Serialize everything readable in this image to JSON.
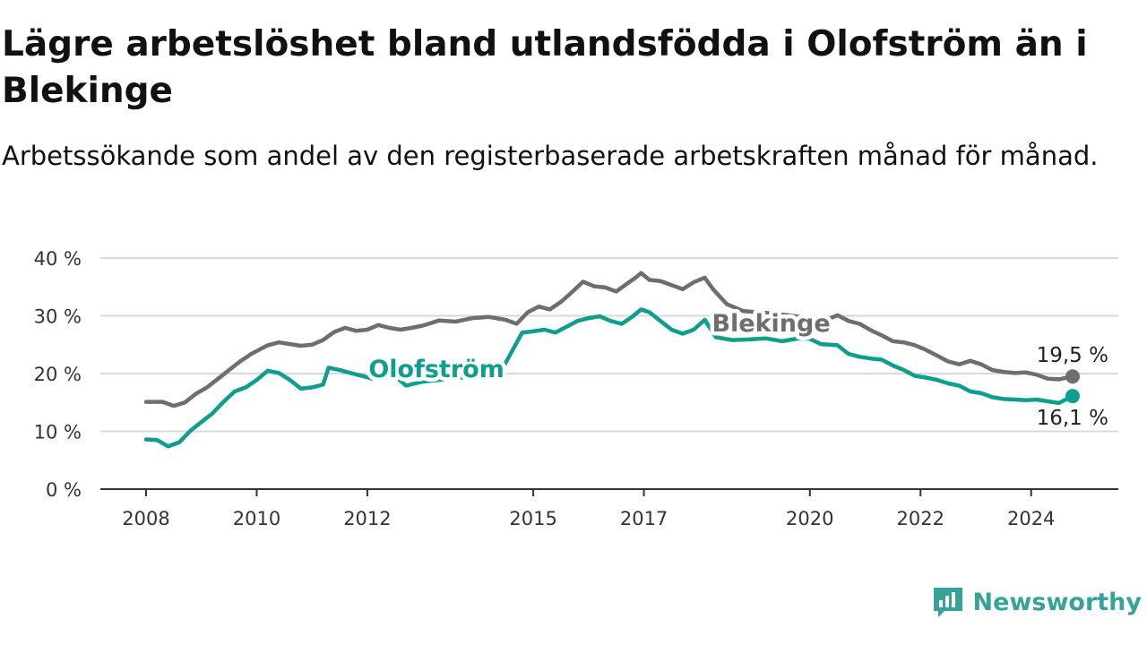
{
  "title": "Lägre arbetslöshet bland utlandsfödda i Olofström än i Blekinge",
  "subtitle": "Arbetssökande som andel av den registerbaserade arbetskraften månad för månad.",
  "brand": {
    "name": "Newsworthy",
    "icon": "bar-chart-bubble-icon"
  },
  "chart_data": {
    "type": "line",
    "title": "Lägre arbetslöshet bland utlandsfödda i Olofström än i Blekinge",
    "subtitle": "Arbetssökande som andel av den registerbaserade arbetskraften månad för månad.",
    "xlabel": "",
    "ylabel": "",
    "xlim": [
      2008.0,
      2024.75
    ],
    "ylim": [
      0,
      40
    ],
    "x_ticks": [
      2008,
      2010,
      2012,
      2015,
      2017,
      2020,
      2022,
      2024
    ],
    "x_tick_labels": [
      "2008",
      "2010",
      "2012",
      "2015",
      "2017",
      "2020",
      "2022",
      "2024"
    ],
    "y_ticks": [
      0,
      10,
      20,
      30,
      40
    ],
    "y_tick_labels": [
      "0 %",
      "10 %",
      "20 %",
      "30 %",
      "40 %"
    ],
    "grid": true,
    "legend": "direct labels",
    "series": [
      {
        "name": "Blekinge",
        "color": "#6d6d73",
        "end_label": "19,5 %",
        "points": [
          [
            2008.0,
            15.1
          ],
          [
            2008.3,
            15.1
          ],
          [
            2008.5,
            14.4
          ],
          [
            2008.7,
            15.0
          ],
          [
            2008.9,
            16.5
          ],
          [
            2009.1,
            17.6
          ],
          [
            2009.3,
            19.1
          ],
          [
            2009.5,
            20.6
          ],
          [
            2009.7,
            22.1
          ],
          [
            2009.9,
            23.4
          ],
          [
            2010.0,
            23.9
          ],
          [
            2010.2,
            24.9
          ],
          [
            2010.4,
            25.4
          ],
          [
            2010.6,
            25.1
          ],
          [
            2010.8,
            24.8
          ],
          [
            2011.0,
            25.0
          ],
          [
            2011.2,
            25.8
          ],
          [
            2011.4,
            27.2
          ],
          [
            2011.6,
            27.9
          ],
          [
            2011.8,
            27.4
          ],
          [
            2012.0,
            27.6
          ],
          [
            2012.2,
            28.4
          ],
          [
            2012.4,
            27.9
          ],
          [
            2012.6,
            27.6
          ],
          [
            2012.8,
            27.9
          ],
          [
            2013.0,
            28.3
          ],
          [
            2013.3,
            29.2
          ],
          [
            2013.6,
            29.0
          ],
          [
            2013.9,
            29.6
          ],
          [
            2014.2,
            29.8
          ],
          [
            2014.5,
            29.3
          ],
          [
            2014.7,
            28.6
          ],
          [
            2014.9,
            30.6
          ],
          [
            2015.1,
            31.6
          ],
          [
            2015.3,
            31.1
          ],
          [
            2015.5,
            32.4
          ],
          [
            2015.7,
            34.1
          ],
          [
            2015.9,
            35.9
          ],
          [
            2016.1,
            35.1
          ],
          [
            2016.3,
            34.9
          ],
          [
            2016.5,
            34.2
          ],
          [
            2016.7,
            35.6
          ],
          [
            2016.85,
            36.6
          ],
          [
            2016.95,
            37.4
          ],
          [
            2017.1,
            36.2
          ],
          [
            2017.3,
            36.0
          ],
          [
            2017.5,
            35.3
          ],
          [
            2017.7,
            34.6
          ],
          [
            2017.9,
            35.8
          ],
          [
            2018.1,
            36.6
          ],
          [
            2018.25,
            34.6
          ],
          [
            2018.5,
            32.0
          ],
          [
            2018.8,
            30.8
          ],
          [
            2019.2,
            30.5
          ],
          [
            2019.6,
            30.1
          ],
          [
            2020.0,
            29.6
          ],
          [
            2020.3,
            29.3
          ],
          [
            2020.5,
            30.1
          ],
          [
            2020.7,
            29.1
          ],
          [
            2020.9,
            28.6
          ],
          [
            2021.1,
            27.5
          ],
          [
            2021.3,
            26.6
          ],
          [
            2021.5,
            25.6
          ],
          [
            2021.7,
            25.4
          ],
          [
            2021.9,
            24.9
          ],
          [
            2022.1,
            24.1
          ],
          [
            2022.3,
            23.1
          ],
          [
            2022.5,
            22.1
          ],
          [
            2022.7,
            21.6
          ],
          [
            2022.9,
            22.2
          ],
          [
            2023.1,
            21.6
          ],
          [
            2023.3,
            20.6
          ],
          [
            2023.5,
            20.3
          ],
          [
            2023.7,
            20.1
          ],
          [
            2023.9,
            20.2
          ],
          [
            2024.1,
            19.8
          ],
          [
            2024.3,
            19.1
          ],
          [
            2024.5,
            19.0
          ],
          [
            2024.75,
            19.5
          ]
        ]
      },
      {
        "name": "Olofström",
        "color": "#0e9e8e",
        "end_label": "16,1 %",
        "points": [
          [
            2008.0,
            8.6
          ],
          [
            2008.2,
            8.5
          ],
          [
            2008.4,
            7.4
          ],
          [
            2008.6,
            8.1
          ],
          [
            2008.8,
            10.1
          ],
          [
            2009.0,
            11.6
          ],
          [
            2009.2,
            13.1
          ],
          [
            2009.4,
            15.1
          ],
          [
            2009.6,
            16.9
          ],
          [
            2009.8,
            17.6
          ],
          [
            2010.0,
            18.9
          ],
          [
            2010.2,
            20.5
          ],
          [
            2010.4,
            20.1
          ],
          [
            2010.6,
            18.9
          ],
          [
            2010.8,
            17.4
          ],
          [
            2011.0,
            17.6
          ],
          [
            2011.2,
            18.1
          ],
          [
            2011.3,
            21.0
          ],
          [
            2011.5,
            20.6
          ],
          [
            2011.7,
            20.1
          ],
          [
            2011.9,
            19.6
          ],
          [
            2012.1,
            19.1
          ],
          [
            2012.3,
            19.9
          ],
          [
            2012.5,
            19.6
          ],
          [
            2012.7,
            17.9
          ],
          [
            2013.0,
            18.6
          ],
          [
            2013.5,
            19.1
          ],
          [
            2014.0,
            19.6
          ],
          [
            2014.4,
            20.1
          ],
          [
            2014.6,
            23.6
          ],
          [
            2014.8,
            27.1
          ],
          [
            2015.0,
            27.3
          ],
          [
            2015.2,
            27.6
          ],
          [
            2015.4,
            27.1
          ],
          [
            2015.6,
            28.1
          ],
          [
            2015.8,
            29.1
          ],
          [
            2016.0,
            29.6
          ],
          [
            2016.2,
            29.9
          ],
          [
            2016.4,
            29.1
          ],
          [
            2016.6,
            28.6
          ],
          [
            2016.8,
            29.9
          ],
          [
            2016.95,
            31.1
          ],
          [
            2017.1,
            30.6
          ],
          [
            2017.3,
            29.1
          ],
          [
            2017.5,
            27.6
          ],
          [
            2017.7,
            26.9
          ],
          [
            2017.9,
            27.6
          ],
          [
            2018.1,
            29.3
          ],
          [
            2018.3,
            26.3
          ],
          [
            2018.6,
            25.8
          ],
          [
            2018.9,
            25.9
          ],
          [
            2019.2,
            26.1
          ],
          [
            2019.5,
            25.6
          ],
          [
            2019.8,
            26.1
          ],
          [
            2020.0,
            26.0
          ],
          [
            2020.2,
            25.1
          ],
          [
            2020.5,
            24.9
          ],
          [
            2020.7,
            23.4
          ],
          [
            2020.9,
            22.9
          ],
          [
            2021.1,
            22.6
          ],
          [
            2021.3,
            22.4
          ],
          [
            2021.5,
            21.4
          ],
          [
            2021.7,
            20.6
          ],
          [
            2021.9,
            19.6
          ],
          [
            2022.1,
            19.3
          ],
          [
            2022.3,
            18.9
          ],
          [
            2022.5,
            18.3
          ],
          [
            2022.7,
            17.9
          ],
          [
            2022.9,
            16.9
          ],
          [
            2023.1,
            16.6
          ],
          [
            2023.3,
            15.9
          ],
          [
            2023.5,
            15.6
          ],
          [
            2023.7,
            15.5
          ],
          [
            2023.9,
            15.4
          ],
          [
            2024.1,
            15.5
          ],
          [
            2024.3,
            15.2
          ],
          [
            2024.5,
            14.9
          ],
          [
            2024.75,
            16.1
          ]
        ]
      }
    ]
  }
}
